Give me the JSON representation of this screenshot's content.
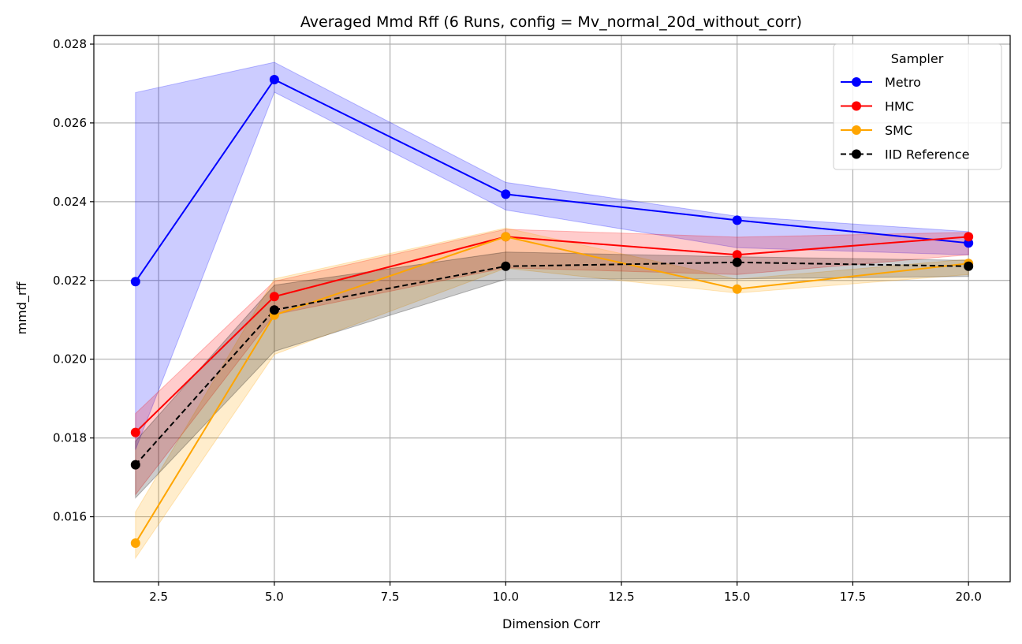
{
  "chart_data": {
    "type": "line",
    "title": "Averaged Mmd Rff (6 Runs, config = Mv_normal_20d_without_corr)",
    "xlabel": "Dimension Corr",
    "ylabel": "mmd_rff",
    "xlim": [
      1.1,
      20.9
    ],
    "ylim": [
      0.01435,
      0.02822
    ],
    "xticks": [
      2.5,
      5.0,
      7.5,
      10.0,
      12.5,
      15.0,
      17.5,
      20.0
    ],
    "xtick_labels": [
      "2.5",
      "5.0",
      "7.5",
      "10.0",
      "12.5",
      "15.0",
      "17.5",
      "20.0"
    ],
    "yticks": [
      0.016,
      0.018,
      0.02,
      0.022,
      0.024,
      0.026,
      0.028
    ],
    "ytick_labels": [
      "0.016",
      "0.018",
      "0.020",
      "0.022",
      "0.024",
      "0.026",
      "0.028"
    ],
    "grid": true,
    "legend": {
      "title": "Sampler",
      "placement": "upper-right"
    },
    "x": [
      2,
      5,
      10,
      15,
      20
    ],
    "series": [
      {
        "name": "Metro",
        "color": "#0000ff",
        "dashed": false,
        "values": [
          0.02197,
          0.0271,
          0.02419,
          0.02353,
          0.02295
        ],
        "lower": [
          0.0177,
          0.02678,
          0.02379,
          0.02283,
          0.02265
        ],
        "upper": [
          0.02677,
          0.02754,
          0.02449,
          0.02363,
          0.02324
        ]
      },
      {
        "name": "HMC",
        "color": "#ff0000",
        "dashed": false,
        "values": [
          0.01814,
          0.02159,
          0.02311,
          0.02265,
          0.02311
        ],
        "lower": [
          0.01656,
          0.02113,
          0.02232,
          0.02215,
          0.02265
        ],
        "upper": [
          0.01862,
          0.02198,
          0.0233,
          0.0231,
          0.02322
        ]
      },
      {
        "name": "SMC",
        "color": "#ffa500",
        "dashed": false,
        "values": [
          0.01533,
          0.02112,
          0.02311,
          0.02178,
          0.02243
        ],
        "lower": [
          0.01495,
          0.02012,
          0.02231,
          0.02168,
          0.02215
        ],
        "upper": [
          0.01612,
          0.02204,
          0.02333,
          0.02203,
          0.02254
        ]
      },
      {
        "name": "IID Reference",
        "color": "#000000",
        "dashed": true,
        "values": [
          0.01732,
          0.02125,
          0.02236,
          0.02246,
          0.02236
        ],
        "lower": [
          0.01648,
          0.0202,
          0.02203,
          0.02204,
          0.0221
        ],
        "upper": [
          0.01792,
          0.02188,
          0.02272,
          0.0226,
          0.02251
        ]
      }
    ]
  }
}
